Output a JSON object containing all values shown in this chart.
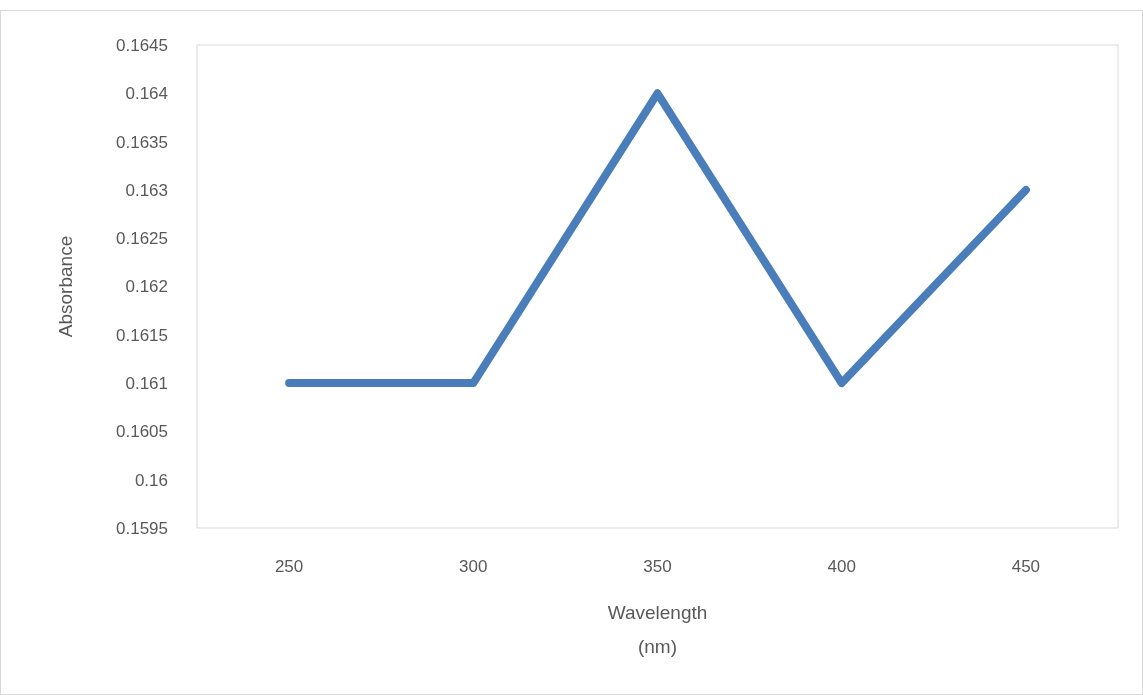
{
  "chart_data": {
    "type": "line",
    "xlabel": "Wavelength\n(nm)",
    "ylabel": "Absorbance",
    "categories": [
      "250",
      "300",
      "350",
      "400",
      "450"
    ],
    "series": [
      {
        "color": "#4a7ebb",
        "values": [
          0.161,
          0.161,
          0.164,
          0.161,
          0.163
        ]
      }
    ],
    "ylim": [
      0.1595,
      0.1645
    ],
    "yticks": [
      0.1595,
      0.16,
      0.1605,
      0.161,
      0.1615,
      0.162,
      0.1625,
      0.163,
      0.1635,
      0.164,
      0.1645
    ],
    "grid": false,
    "marker": "none",
    "line_style": "solid"
  }
}
